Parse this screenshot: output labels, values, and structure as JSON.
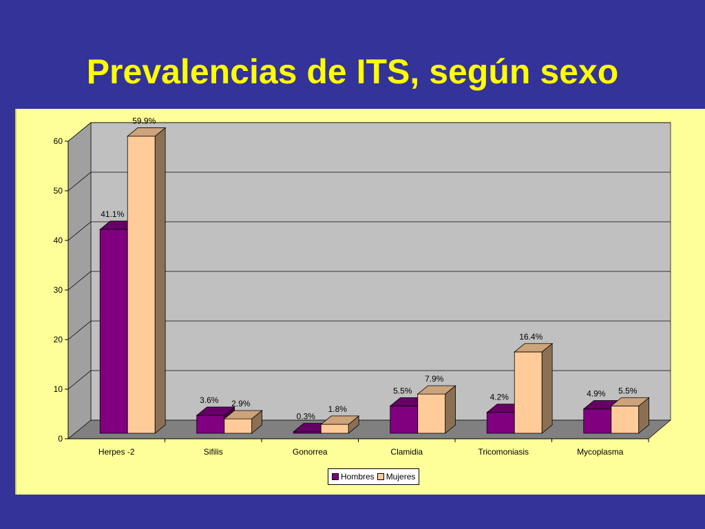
{
  "slide": {
    "title": "Prevalencias de ITS, según sexo"
  },
  "colors": {
    "background": "#333399",
    "title": "#ffff00",
    "panel": "#ffff99",
    "plot_wall": "#c0c0c0",
    "floor": "#808080",
    "hombres": "#800080",
    "mujeres": "#ffcc99"
  },
  "chart_data": {
    "type": "bar",
    "style": "3d-clustered-column",
    "categories": [
      "Herpes -2",
      "Sifilis",
      "Gonorrea",
      "Clamidia",
      "Tricomoniasis",
      "Mycoplasma"
    ],
    "series": [
      {
        "name": "Hombres",
        "values": [
          41.1,
          3.6,
          0.3,
          5.5,
          4.2,
          4.9
        ],
        "labels": [
          "41.1%",
          "3.6%",
          "0.3%",
          "5.5%",
          "4.2%",
          "4.9%"
        ],
        "color": "#800080"
      },
      {
        "name": "Mujeres",
        "values": [
          59.9,
          2.9,
          1.8,
          7.9,
          16.4,
          5.5
        ],
        "labels": [
          "59.9%",
          "2.9%",
          "1.8%",
          "7.9%",
          "16.4%",
          "5.5%"
        ],
        "color": "#ffcc99"
      }
    ],
    "ylim": [
      0,
      60
    ],
    "yticks": [
      "0",
      "10",
      "20",
      "30",
      "40",
      "50",
      "60"
    ],
    "grid": true,
    "legend": "bottom"
  }
}
